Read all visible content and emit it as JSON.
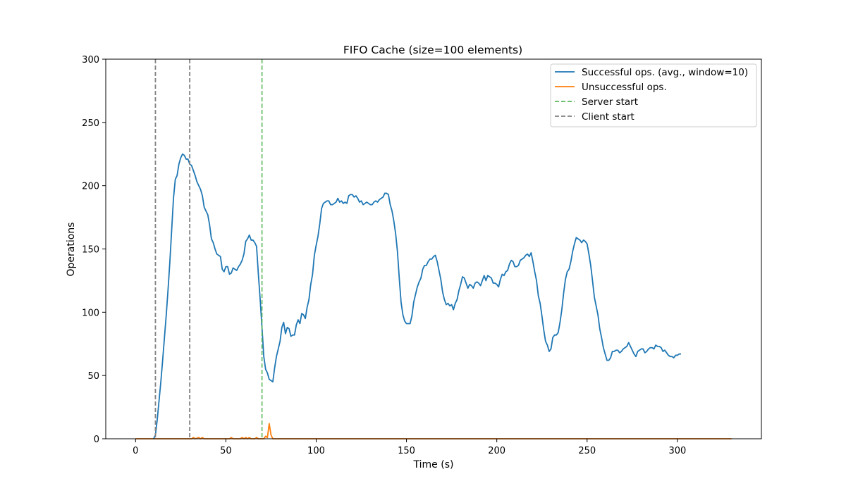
{
  "chart_data": {
    "type": "line",
    "title": "FIFO Cache (size=100 elements)",
    "xlabel": "Time (s)",
    "ylabel": "Operations",
    "xlim": [
      -16.5,
      346.5
    ],
    "ylim": [
      0,
      300
    ],
    "xticks": [
      0,
      50,
      100,
      150,
      200,
      250,
      300
    ],
    "yticks": [
      0,
      50,
      100,
      150,
      200,
      250,
      300
    ],
    "legend_position": "top-right",
    "series": [
      {
        "name": "Successful ops. (avg., window=10)",
        "color": "#1f77b4",
        "style": "solid",
        "points": [
          [
            10,
            0
          ],
          [
            11,
            3
          ],
          [
            12,
            15
          ],
          [
            13,
            30
          ],
          [
            14,
            45
          ],
          [
            15,
            62
          ],
          [
            16,
            80
          ],
          [
            17,
            98
          ],
          [
            18,
            118
          ],
          [
            19,
            140
          ],
          [
            20,
            165
          ],
          [
            21,
            190
          ],
          [
            22,
            205
          ],
          [
            23,
            208
          ],
          [
            24,
            217
          ],
          [
            25,
            222
          ],
          [
            26,
            225
          ],
          [
            27,
            224
          ],
          [
            28,
            221
          ],
          [
            29,
            221
          ],
          [
            30,
            217
          ],
          [
            31,
            216
          ],
          [
            32,
            212
          ],
          [
            33,
            208
          ],
          [
            34,
            203
          ],
          [
            35,
            200
          ],
          [
            36,
            197
          ],
          [
            37,
            192
          ],
          [
            38,
            183
          ],
          [
            39,
            180
          ],
          [
            40,
            177
          ],
          [
            41,
            169
          ],
          [
            42,
            158
          ],
          [
            43,
            155
          ],
          [
            44,
            150
          ],
          [
            45,
            146
          ],
          [
            46,
            145
          ],
          [
            47,
            144
          ],
          [
            48,
            134
          ],
          [
            49,
            132
          ],
          [
            50,
            136
          ],
          [
            51,
            136
          ],
          [
            52,
            130
          ],
          [
            53,
            131
          ],
          [
            54,
            135
          ],
          [
            55,
            134
          ],
          [
            56,
            133
          ],
          [
            57,
            136
          ],
          [
            58,
            138
          ],
          [
            59,
            141
          ],
          [
            60,
            146
          ],
          [
            61,
            156
          ],
          [
            62,
            158
          ],
          [
            63,
            161
          ],
          [
            64,
            157
          ],
          [
            65,
            157
          ],
          [
            66,
            155
          ],
          [
            67,
            152
          ],
          [
            68,
            130
          ],
          [
            69,
            110
          ],
          [
            70,
            88
          ],
          [
            71,
            65
          ],
          [
            72,
            55
          ],
          [
            73,
            52
          ],
          [
            74,
            47
          ],
          [
            75,
            46
          ],
          [
            76,
            45
          ],
          [
            77,
            56
          ],
          [
            78,
            65
          ],
          [
            79,
            71
          ],
          [
            80,
            77
          ],
          [
            81,
            88
          ],
          [
            82,
            92
          ],
          [
            83,
            83
          ],
          [
            84,
            88
          ],
          [
            85,
            87
          ],
          [
            86,
            81
          ],
          [
            87,
            82
          ],
          [
            88,
            82
          ],
          [
            89,
            90
          ],
          [
            90,
            94
          ],
          [
            91,
            91
          ],
          [
            92,
            99
          ],
          [
            93,
            98
          ],
          [
            94,
            95
          ],
          [
            95,
            104
          ],
          [
            96,
            110
          ],
          [
            97,
            122
          ],
          [
            98,
            130
          ],
          [
            99,
            145
          ],
          [
            100,
            153
          ],
          [
            101,
            160
          ],
          [
            102,
            170
          ],
          [
            103,
            182
          ],
          [
            104,
            186
          ],
          [
            105,
            187
          ],
          [
            106,
            188
          ],
          [
            107,
            188
          ],
          [
            108,
            185
          ],
          [
            109,
            185
          ],
          [
            110,
            186
          ],
          [
            111,
            187
          ],
          [
            112,
            190
          ],
          [
            113,
            187
          ],
          [
            114,
            188
          ],
          [
            115,
            186
          ],
          [
            116,
            187
          ],
          [
            117,
            186
          ],
          [
            118,
            192
          ],
          [
            119,
            193
          ],
          [
            120,
            193
          ],
          [
            121,
            191
          ],
          [
            122,
            192
          ],
          [
            123,
            190
          ],
          [
            124,
            187
          ],
          [
            125,
            188
          ],
          [
            126,
            185
          ],
          [
            127,
            186
          ],
          [
            128,
            187
          ],
          [
            129,
            186
          ],
          [
            130,
            185
          ],
          [
            131,
            185
          ],
          [
            132,
            187
          ],
          [
            133,
            188
          ],
          [
            134,
            187
          ],
          [
            135,
            189
          ],
          [
            136,
            190
          ],
          [
            137,
            191
          ],
          [
            138,
            194
          ],
          [
            139,
            194
          ],
          [
            140,
            193
          ],
          [
            141,
            185
          ],
          [
            142,
            180
          ],
          [
            143,
            172
          ],
          [
            144,
            162
          ],
          [
            145,
            148
          ],
          [
            146,
            127
          ],
          [
            147,
            108
          ],
          [
            148,
            98
          ],
          [
            149,
            93
          ],
          [
            150,
            91
          ],
          [
            151,
            91
          ],
          [
            152,
            91
          ],
          [
            153,
            97
          ],
          [
            154,
            108
          ],
          [
            155,
            114
          ],
          [
            156,
            120
          ],
          [
            157,
            124
          ],
          [
            158,
            127
          ],
          [
            159,
            134
          ],
          [
            160,
            137
          ],
          [
            161,
            137
          ],
          [
            162,
            140
          ],
          [
            163,
            142
          ],
          [
            164,
            142
          ],
          [
            165,
            144
          ],
          [
            166,
            145
          ],
          [
            167,
            140
          ],
          [
            168,
            133
          ],
          [
            169,
            126
          ],
          [
            170,
            116
          ],
          [
            171,
            110
          ],
          [
            172,
            106
          ],
          [
            173,
            107
          ],
          [
            174,
            105
          ],
          [
            175,
            106
          ],
          [
            176,
            102
          ],
          [
            177,
            107
          ],
          [
            178,
            110
          ],
          [
            179,
            117
          ],
          [
            180,
            122
          ],
          [
            181,
            128
          ],
          [
            182,
            127
          ],
          [
            183,
            123
          ],
          [
            184,
            119
          ],
          [
            185,
            122
          ],
          [
            186,
            121
          ],
          [
            187,
            119
          ],
          [
            188,
            123
          ],
          [
            189,
            124
          ],
          [
            190,
            123
          ],
          [
            191,
            121
          ],
          [
            192,
            125
          ],
          [
            193,
            129
          ],
          [
            194,
            125
          ],
          [
            195,
            129
          ],
          [
            196,
            128
          ],
          [
            197,
            127
          ],
          [
            198,
            123
          ],
          [
            199,
            123
          ],
          [
            200,
            122
          ],
          [
            201,
            120
          ],
          [
            202,
            126
          ],
          [
            203,
            130
          ],
          [
            204,
            129
          ],
          [
            205,
            132
          ],
          [
            206,
            133
          ],
          [
            207,
            138
          ],
          [
            208,
            141
          ],
          [
            209,
            140
          ],
          [
            210,
            136
          ],
          [
            211,
            136
          ],
          [
            212,
            137
          ],
          [
            213,
            141
          ],
          [
            214,
            142
          ],
          [
            215,
            143
          ],
          [
            216,
            145
          ],
          [
            217,
            146
          ],
          [
            218,
            144
          ],
          [
            219,
            147
          ],
          [
            220,
            140
          ],
          [
            221,
            132
          ],
          [
            222,
            125
          ],
          [
            223,
            113
          ],
          [
            224,
            107
          ],
          [
            225,
            97
          ],
          [
            226,
            86
          ],
          [
            227,
            77
          ],
          [
            228,
            74
          ],
          [
            229,
            69
          ],
          [
            230,
            71
          ],
          [
            231,
            80
          ],
          [
            232,
            82
          ],
          [
            233,
            82
          ],
          [
            234,
            84
          ],
          [
            235,
            92
          ],
          [
            236,
            102
          ],
          [
            237,
            115
          ],
          [
            238,
            126
          ],
          [
            239,
            132
          ],
          [
            240,
            134
          ],
          [
            241,
            140
          ],
          [
            242,
            148
          ],
          [
            243,
            154
          ],
          [
            244,
            159
          ],
          [
            245,
            158
          ],
          [
            246,
            157
          ],
          [
            247,
            155
          ],
          [
            248,
            157
          ],
          [
            249,
            156
          ],
          [
            250,
            154
          ],
          [
            251,
            146
          ],
          [
            252,
            137
          ],
          [
            253,
            125
          ],
          [
            254,
            112
          ],
          [
            255,
            105
          ],
          [
            256,
            98
          ],
          [
            257,
            87
          ],
          [
            258,
            80
          ],
          [
            259,
            72
          ],
          [
            260,
            67
          ],
          [
            261,
            62
          ],
          [
            262,
            62
          ],
          [
            263,
            64
          ],
          [
            264,
            69
          ],
          [
            265,
            69
          ],
          [
            266,
            70
          ],
          [
            267,
            70
          ],
          [
            268,
            68
          ],
          [
            269,
            69
          ],
          [
            270,
            71
          ],
          [
            271,
            72
          ],
          [
            272,
            73
          ],
          [
            273,
            76
          ],
          [
            274,
            73
          ],
          [
            275,
            70
          ],
          [
            276,
            67
          ],
          [
            277,
            65
          ],
          [
            278,
            69
          ],
          [
            279,
            70
          ],
          [
            280,
            71
          ],
          [
            281,
            71
          ],
          [
            282,
            68
          ],
          [
            283,
            69
          ],
          [
            284,
            71
          ],
          [
            285,
            72
          ],
          [
            286,
            72
          ],
          [
            287,
            71
          ],
          [
            288,
            74
          ],
          [
            289,
            73
          ],
          [
            290,
            73
          ],
          [
            291,
            72
          ],
          [
            292,
            69
          ],
          [
            293,
            70
          ],
          [
            294,
            68
          ],
          [
            295,
            66
          ],
          [
            296,
            65
          ],
          [
            297,
            65
          ],
          [
            298,
            64
          ],
          [
            299,
            66
          ],
          [
            300,
            66
          ],
          [
            301,
            67
          ],
          [
            302,
            67
          ]
        ]
      },
      {
        "name": "Unsuccessful ops.",
        "color": "#ff7f0e",
        "style": "solid",
        "points": [
          [
            0,
            0
          ],
          [
            31,
            0
          ],
          [
            32,
            1
          ],
          [
            33,
            0
          ],
          [
            35,
            1
          ],
          [
            36,
            0
          ],
          [
            37,
            1
          ],
          [
            38,
            0
          ],
          [
            52,
            0
          ],
          [
            53,
            1
          ],
          [
            54,
            0
          ],
          [
            58,
            0
          ],
          [
            59,
            1
          ],
          [
            60,
            0
          ],
          [
            61,
            1
          ],
          [
            62,
            0
          ],
          [
            63,
            1
          ],
          [
            64,
            0
          ],
          [
            66,
            0
          ],
          [
            67,
            1
          ],
          [
            68,
            0
          ],
          [
            71,
            0
          ],
          [
            72,
            2
          ],
          [
            73,
            1
          ],
          [
            74,
            12
          ],
          [
            75,
            3
          ],
          [
            76,
            0
          ],
          [
            330,
            0
          ]
        ]
      },
      {
        "name": "Server start",
        "color": "#5cb85c",
        "style": "dashed",
        "vline": 70
      },
      {
        "name": "Client start",
        "color": "#808080",
        "style": "dashed",
        "vlines": [
          11,
          30
        ]
      }
    ]
  }
}
